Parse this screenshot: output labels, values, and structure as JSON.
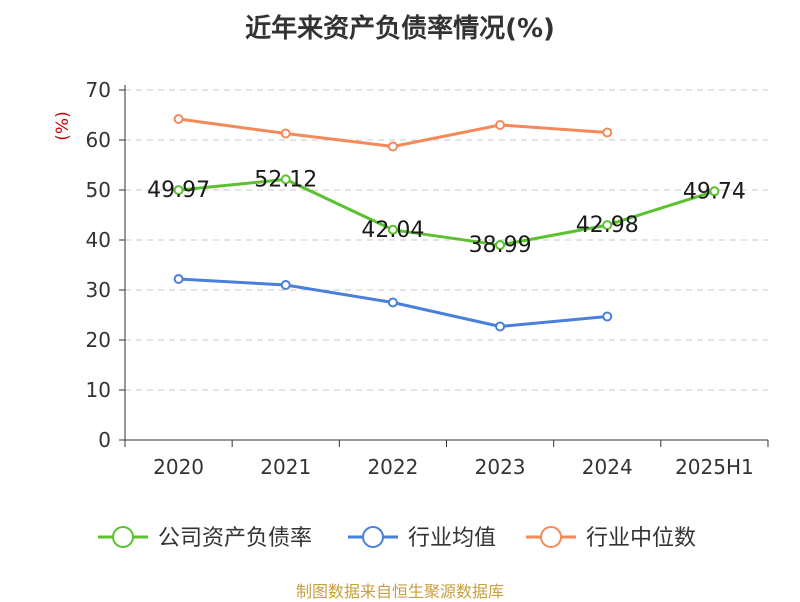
{
  "chart_data": {
    "type": "line",
    "title": "近年来资产负债率情况(%)",
    "ylabel": "(%)",
    "categories": [
      "2020",
      "2021",
      "2022",
      "2023",
      "2024",
      "2025H1"
    ],
    "yticks": [
      "0",
      "10",
      "20",
      "30",
      "40",
      "50",
      "60",
      "70"
    ],
    "ylim": [
      0,
      70
    ],
    "grid": true,
    "legend_position": "bottom",
    "series": [
      {
        "name": "公司资产负债率",
        "color": "#5cc12f",
        "values": [
          49.97,
          52.12,
          42.04,
          38.99,
          42.98,
          49.74
        ],
        "labels": [
          "49.97",
          "52.12",
          "42.04",
          "38.99",
          "42.98",
          "49.74"
        ]
      },
      {
        "name": "行业均值",
        "color": "#4a7fdc",
        "values": [
          32.2,
          31.0,
          27.5,
          22.7,
          24.7,
          null
        ]
      },
      {
        "name": "行业中位数",
        "color": "#f4895a",
        "values": [
          64.2,
          61.3,
          58.7,
          63.0,
          61.5,
          null
        ]
      }
    ]
  },
  "footer": {
    "source": "制图数据来自恒生聚源数据库"
  }
}
